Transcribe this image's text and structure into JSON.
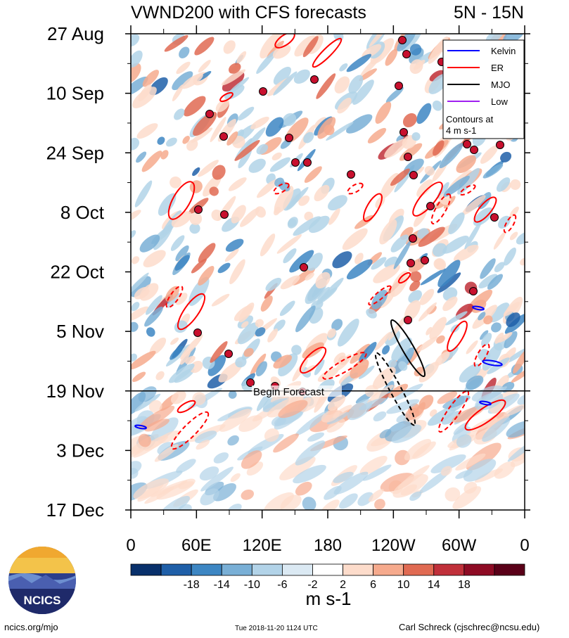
{
  "chart_data": {
    "type": "heatmap",
    "title": "VWND200 with CFS forecasts",
    "region": "5N - 15N",
    "x_tick_labels": [
      "0",
      "60E",
      "120E",
      "180",
      "120W",
      "60W",
      "0"
    ],
    "x_range_deg": [
      0,
      360
    ],
    "y_tick_labels": [
      "27 Aug",
      "10 Sep",
      "24 Sep",
      "8 Oct",
      "22 Oct",
      "5 Nov",
      "19 Nov",
      "3 Dec",
      "17 Dec"
    ],
    "y_range_days": [
      0,
      112
    ],
    "forecast_start_day": 84,
    "forecast_label": "Begin Forecast",
    "colorbar": {
      "tick_labels": [
        "-18",
        "-14",
        "-10",
        "-6",
        "-2",
        "2",
        "6",
        "10",
        "14",
        "18"
      ],
      "colors": [
        "#08306b",
        "#1f5fa8",
        "#3d86c3",
        "#79afd6",
        "#b2d3e8",
        "#dbe9f3",
        "#ffffff",
        "#fddccb",
        "#f6aa8d",
        "#e06a52",
        "#c0303a",
        "#8e0b24",
        "#5a0018"
      ],
      "unit": "m s-1"
    },
    "legend": {
      "entries": [
        {
          "label": "Kelvin",
          "color": "#0000ff"
        },
        {
          "label": "ER",
          "color": "#ff0000"
        },
        {
          "label": "MJO",
          "color": "#000000"
        },
        {
          "label": "Low",
          "color": "#a020f0"
        }
      ],
      "note_line1": "Contours at",
      "note_line2": "4 m s-1"
    }
  },
  "footer": {
    "left": "ncics.org/mjo",
    "center": "Tue 2018-11-20 1124 UTC",
    "right": "Carl Schreck (cjschrec@ncsu.edu)"
  },
  "logo": {
    "text": "NCICS"
  }
}
